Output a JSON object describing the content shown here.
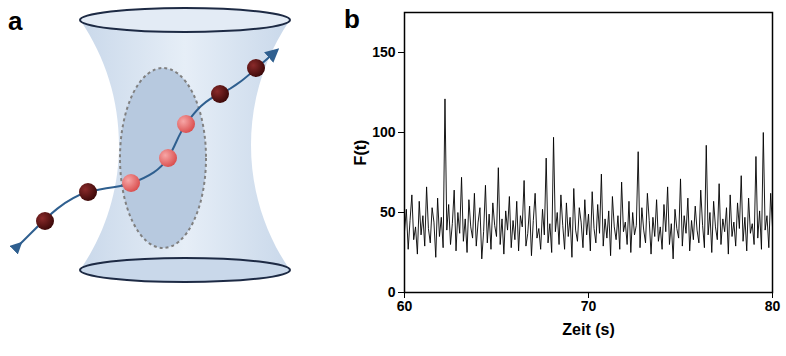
{
  "diagram": {
    "label": "a"
  },
  "chart_data": {
    "label": "b",
    "type": "line",
    "x_label": "Zeit (s)",
    "y_label": "F(t)",
    "color": "#000000",
    "xlim": [
      60,
      80
    ],
    "ylim": [
      0,
      175
    ],
    "xticks": [
      60,
      70,
      80
    ],
    "yticks": [
      0,
      50,
      100,
      150
    ],
    "x": [
      60,
      60.1,
      60.2,
      60.3,
      60.4,
      60.5,
      60.6,
      60.7,
      60.8,
      60.9,
      61,
      61.1,
      61.2,
      61.3,
      61.4,
      61.5,
      61.6,
      61.7,
      61.8,
      61.9,
      62,
      62.1,
      62.2,
      62.3,
      62.4,
      62.5,
      62.6,
      62.7,
      62.8,
      62.9,
      63,
      63.1,
      63.2,
      63.3,
      63.4,
      63.5,
      63.6,
      63.7,
      63.8,
      63.9,
      64,
      64.1,
      64.2,
      64.3,
      64.4,
      64.5,
      64.6,
      64.7,
      64.8,
      64.9,
      65,
      65.1,
      65.2,
      65.3,
      65.4,
      65.5,
      65.6,
      65.7,
      65.8,
      65.9,
      66,
      66.1,
      66.2,
      66.3,
      66.4,
      66.5,
      66.6,
      66.7,
      66.8,
      66.9,
      67,
      67.1,
      67.2,
      67.3,
      67.4,
      67.5,
      67.6,
      67.7,
      67.8,
      67.9,
      68,
      68.1,
      68.2,
      68.3,
      68.4,
      68.5,
      68.6,
      68.7,
      68.8,
      68.9,
      69,
      69.1,
      69.2,
      69.3,
      69.4,
      69.5,
      69.6,
      69.7,
      69.8,
      69.9,
      70,
      70.1,
      70.2,
      70.3,
      70.4,
      70.5,
      70.6,
      70.7,
      70.8,
      70.9,
      71,
      71.1,
      71.2,
      71.3,
      71.4,
      71.5,
      71.6,
      71.7,
      71.8,
      71.9,
      72,
      72.1,
      72.2,
      72.3,
      72.4,
      72.5,
      72.6,
      72.7,
      72.8,
      72.9,
      73,
      73.1,
      73.2,
      73.3,
      73.4,
      73.5,
      73.6,
      73.7,
      73.8,
      73.9,
      74,
      74.1,
      74.2,
      74.3,
      74.4,
      74.5,
      74.6,
      74.7,
      74.8,
      74.9,
      75,
      75.1,
      75.2,
      75.3,
      75.4,
      75.5,
      75.6,
      75.7,
      75.8,
      75.9,
      76,
      76.1,
      76.2,
      76.3,
      76.4,
      76.5,
      76.6,
      76.7,
      76.8,
      76.9,
      77,
      77.1,
      77.2,
      77.3,
      77.4,
      77.5,
      77.6,
      77.7,
      77.8,
      77.9,
      78,
      78.1,
      78.2,
      78.3,
      78.4,
      78.5,
      78.6,
      78.7,
      78.8,
      78.9,
      79,
      79.1,
      79.2,
      79.3,
      79.4,
      79.5,
      79.6,
      79.7,
      79.8,
      79.9,
      80
    ],
    "values": [
      38,
      52,
      27,
      45,
      61,
      33,
      41,
      24,
      57,
      36,
      48,
      29,
      66,
      40,
      31,
      53,
      44,
      22,
      59,
      35,
      47,
      28,
      121,
      39,
      55,
      30,
      43,
      64,
      26,
      50,
      37,
      72,
      32,
      46,
      25,
      58,
      41,
      34,
      62,
      29,
      44,
      53,
      21,
      38,
      67,
      31,
      49,
      27,
      56,
      42,
      35,
      78,
      30,
      46,
      24,
      51,
      39,
      60,
      28,
      45,
      33,
      57,
      26,
      48,
      41,
      70,
      29,
      37,
      54,
      23,
      45,
      62,
      34,
      40,
      27,
      52,
      36,
      84,
      31,
      43,
      25,
      97,
      38,
      50,
      30,
      61,
      42,
      27,
      56,
      35,
      47,
      22,
      65,
      39,
      32,
      53,
      44,
      28,
      58,
      36,
      49,
      26,
      63,
      40,
      31,
      55,
      37,
      74,
      29,
      46,
      34,
      51,
      23,
      60,
      41,
      33,
      48,
      27,
      69,
      38,
      44,
      30,
      57,
      25,
      50,
      36,
      42,
      88,
      28,
      53,
      39,
      31,
      62,
      45,
      24,
      47,
      35,
      58,
      32,
      41,
      27,
      55,
      38,
      66,
      30,
      43,
      21,
      52,
      40,
      34,
      71,
      29,
      48,
      37,
      59,
      26,
      45,
      33,
      54,
      39,
      31,
      64,
      42,
      28,
      92,
      36,
      50,
      25,
      57,
      41,
      33,
      68,
      30,
      46,
      38,
      53,
      24,
      61,
      35,
      44,
      29,
      56,
      40,
      73,
      32,
      47,
      26,
      59,
      37,
      43,
      30,
      85,
      34,
      51,
      27,
      100,
      39,
      48,
      28,
      62,
      41
    ]
  }
}
